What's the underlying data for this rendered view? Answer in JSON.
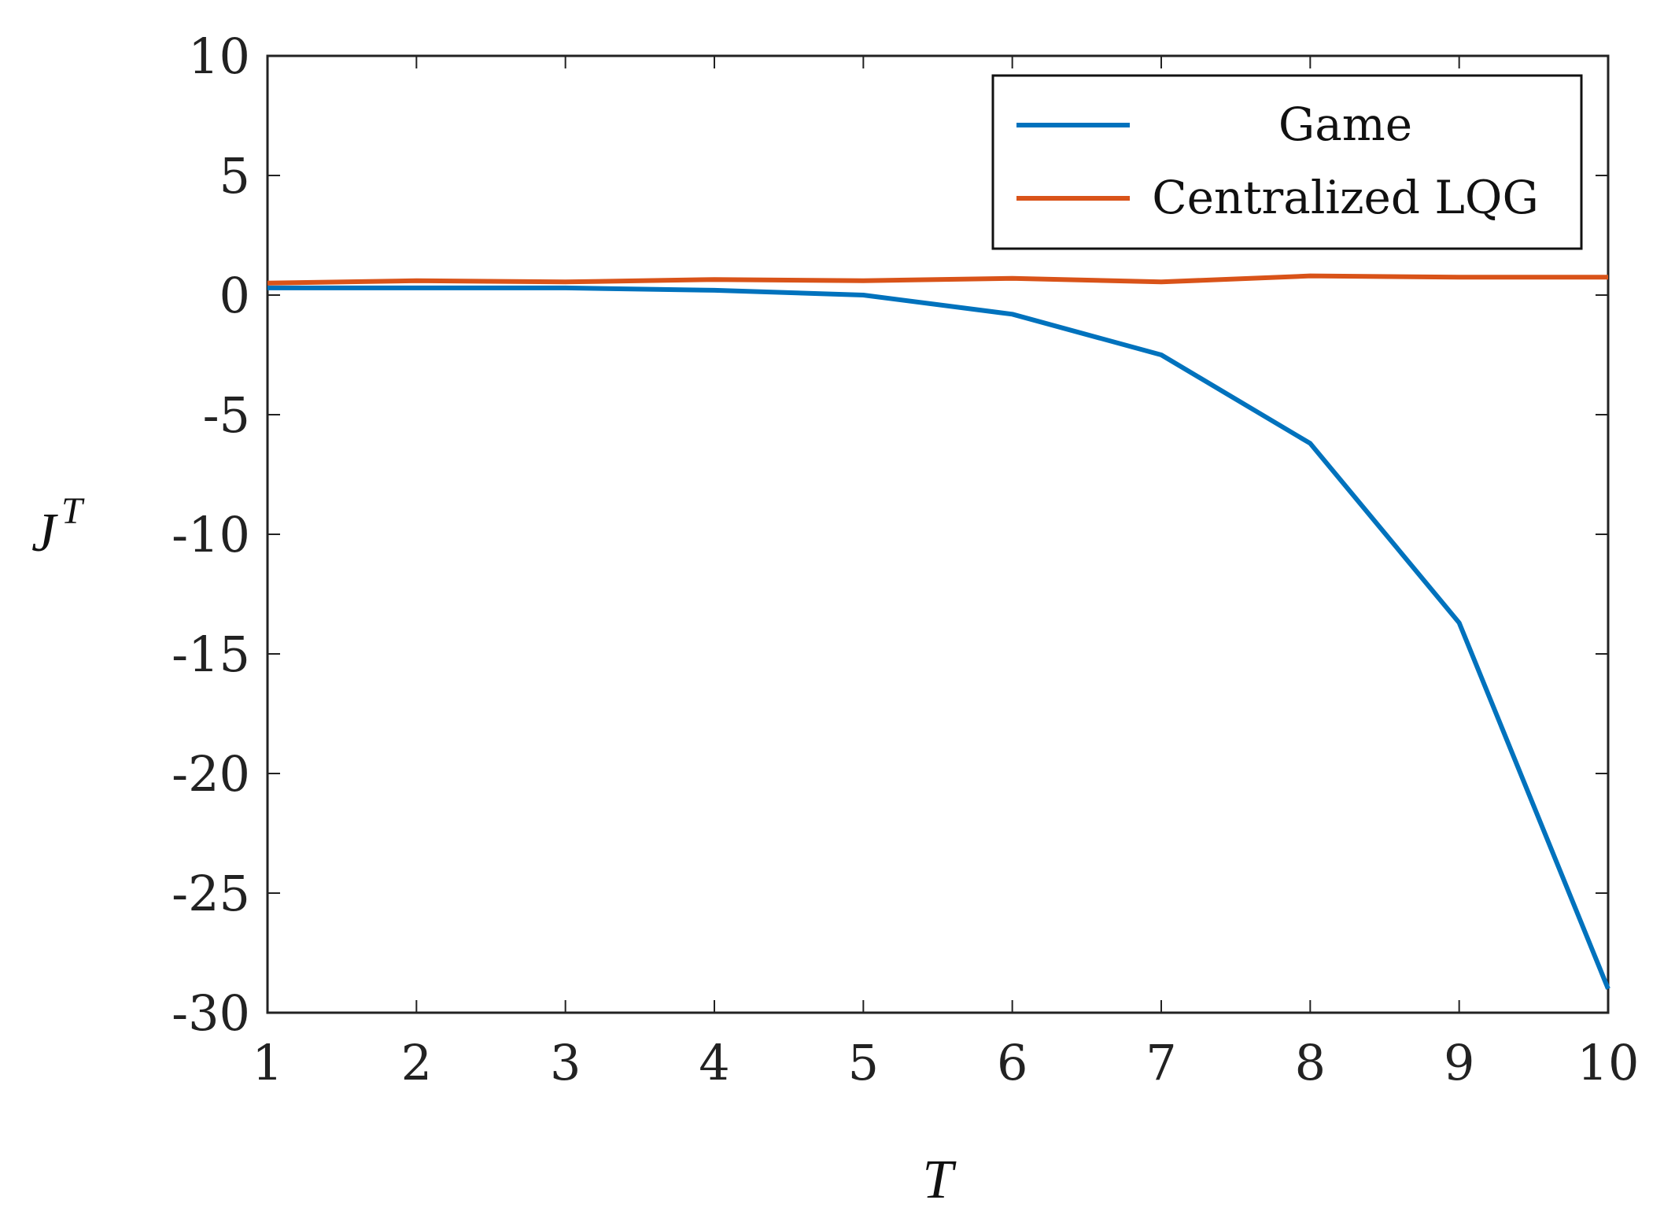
{
  "chart_data": {
    "type": "line",
    "x": [
      1,
      2,
      3,
      4,
      5,
      6,
      7,
      8,
      9,
      10
    ],
    "series": [
      {
        "name": "Game",
        "color": "#0072bd",
        "values": [
          0.3,
          0.3,
          0.3,
          0.2,
          0.0,
          -0.8,
          -2.5,
          -6.2,
          -13.7,
          -29.0
        ]
      },
      {
        "name": "Centralized LQG",
        "color": "#d95319",
        "values": [
          0.5,
          0.6,
          0.55,
          0.65,
          0.6,
          0.7,
          0.55,
          0.8,
          0.75,
          0.75
        ]
      }
    ],
    "xlim": [
      1,
      10
    ],
    "ylim": [
      -30,
      10
    ],
    "xticks": [
      1,
      2,
      3,
      4,
      5,
      6,
      7,
      8,
      9,
      10
    ],
    "yticks": [
      10,
      5,
      0,
      -5,
      -10,
      -15,
      -20,
      -25,
      -30
    ],
    "xtick_labels": [
      "1",
      "2",
      "3",
      "4",
      "5",
      "6",
      "7",
      "8",
      "9",
      "10"
    ],
    "ytick_labels": [
      "10",
      "5",
      "0",
      "-5",
      "-10",
      "-15",
      "-20",
      "-25",
      "-30"
    ],
    "xlabel": "T",
    "ylabel": "J",
    "ylabel_superscript": "T",
    "legend": {
      "position": "top-right",
      "entries": [
        "Game",
        "Centralized LQG"
      ]
    },
    "grid": false
  }
}
